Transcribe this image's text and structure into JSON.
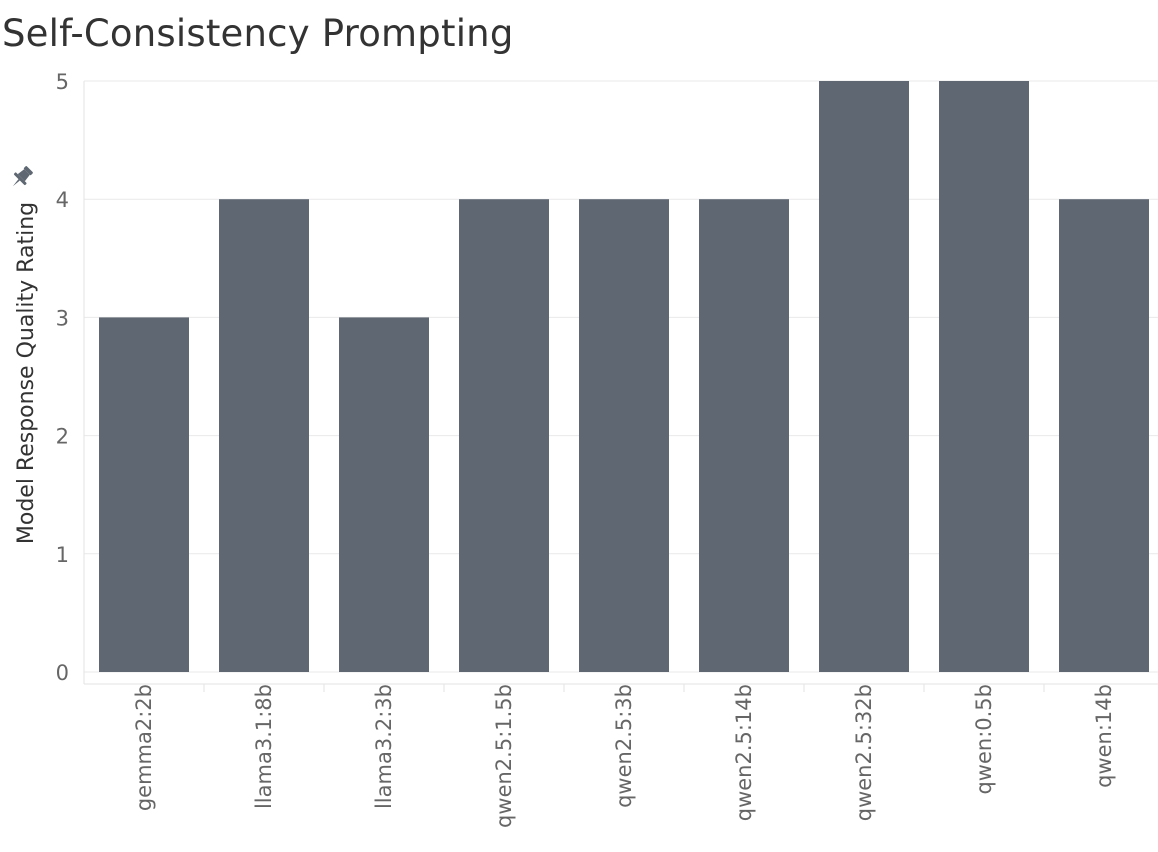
{
  "page": {
    "title": "Self-Consistency Prompting",
    "pin_icon": "pin-icon"
  },
  "chart_data": {
    "type": "bar",
    "title": "Self-Consistency Prompting",
    "xlabel": "",
    "ylabel": "Model Response Quality Rating",
    "categories": [
      "gemma2:2b",
      "llama3.1:8b",
      "llama3.2:3b",
      "qwen2.5:1.5b",
      "qwen2.5:3b",
      "qwen2.5:14b",
      "qwen2.5:32b",
      "qwen:0.5b",
      "qwen:14b"
    ],
    "values": [
      3,
      4,
      3,
      4,
      4,
      4,
      5,
      5,
      4
    ],
    "ylim": [
      0,
      5
    ],
    "yticks": [
      "0",
      "1",
      "2",
      "3",
      "4",
      "5"
    ],
    "grid": "horizontal",
    "bar_color": "#5f6872"
  }
}
